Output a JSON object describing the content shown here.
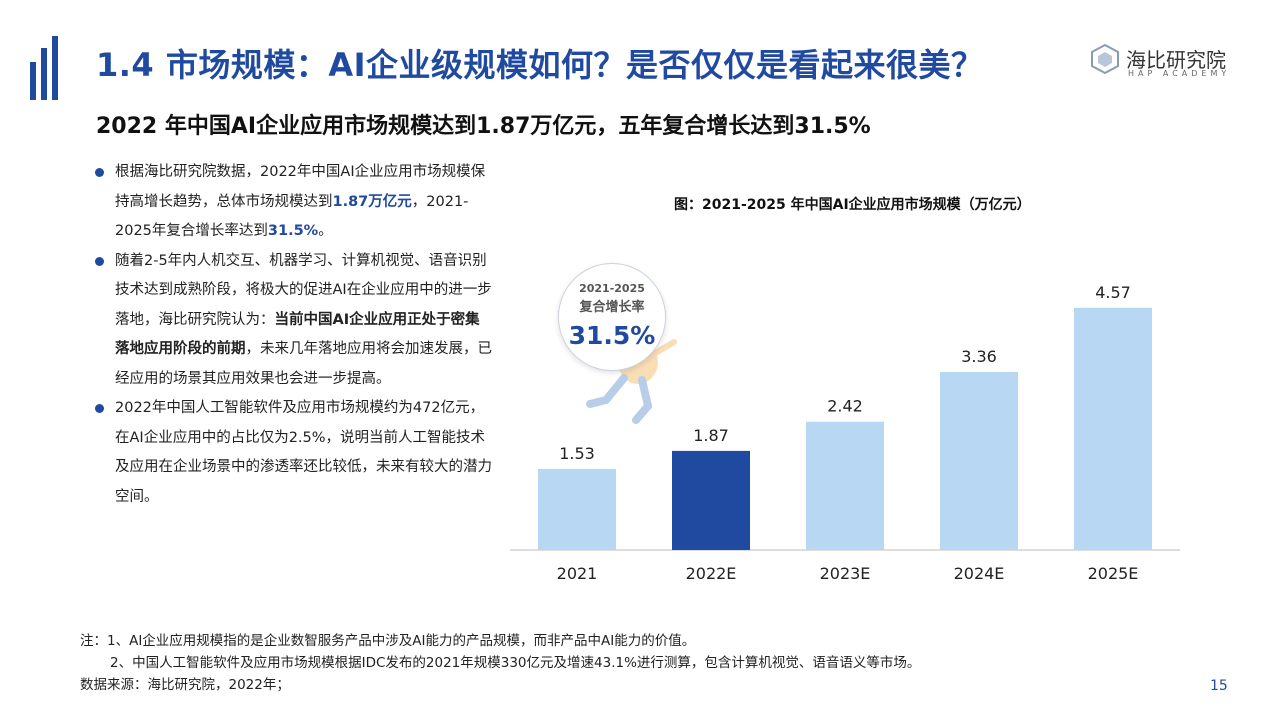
{
  "header": {
    "title": "1.4 市场规模：AI企业级规模如何？是否仅仅是看起来很美？",
    "logo_cn": "海比研究院",
    "logo_en": "HAP ACADEMY"
  },
  "subtitle": "2022 年中国AI企业应用市场规模达到1.87万亿元，五年复合增长达到31.5%",
  "bullets": [
    {
      "p1": "根据海比研究院数据，2022年中国AI企业应用市场规模保持高增长趋势，总体市场规模达到",
      "h1": "1.87万亿元",
      "p2": "，2021-2025年复合增长率达到",
      "h2": "31.5%",
      "p3": "。"
    },
    {
      "p1": "随着2-5年内人机交互、机器学习、计算机视觉、语音识别技术达到成熟阶段，将极大的促进AI在企业应用中的进一步落地，海比研究院认为：",
      "b1": "当前中国AI企业应用正处于密集落地应用阶段的前期",
      "p2": "，未来几年落地应用将会加速发展，已经应用的场景其应用效果也会进一步提高。"
    },
    {
      "p1": "2022年中国人工智能软件及应用市场规模约为472亿元，在AI企业应用中的占比仅为2.5%，说明当前人工智能技术及应用在企业场景中的渗透率还比较低，未来有较大的潜力空间。"
    }
  ],
  "badge": {
    "years": "2021-2025",
    "label": "复合增长率",
    "value": "31.5%"
  },
  "chart_data": {
    "type": "bar",
    "title": "图：2021-2025 年中国AI企业应用市场规模（万亿元）",
    "categories": [
      "2021",
      "2022E",
      "2023E",
      "2024E",
      "2025E"
    ],
    "values": [
      1.53,
      1.87,
      2.42,
      3.36,
      4.57
    ],
    "value_labels": [
      "1.53",
      "1.87",
      "2.42",
      "3.36",
      "4.57"
    ],
    "highlight_index": 1,
    "ylim": [
      0,
      5
    ],
    "grid": false,
    "colors": {
      "default": "#b8d7f2",
      "highlight": "#1f4aa0",
      "axis": "#bbbbbb"
    }
  },
  "notes": {
    "line1": "注：1、AI企业应用规模指的是企业数智服务产品中涉及AI能力的产品规模，而非产品中AI能力的价值。",
    "line2": "2、中国人工智能软件及应用市场规模根据IDC发布的2021年规模330亿元及增速43.1%进行测算，包含计算机视觉、语音语义等市场。",
    "source": "数据来源：海比研究院，2022年；"
  },
  "page_number": "15"
}
